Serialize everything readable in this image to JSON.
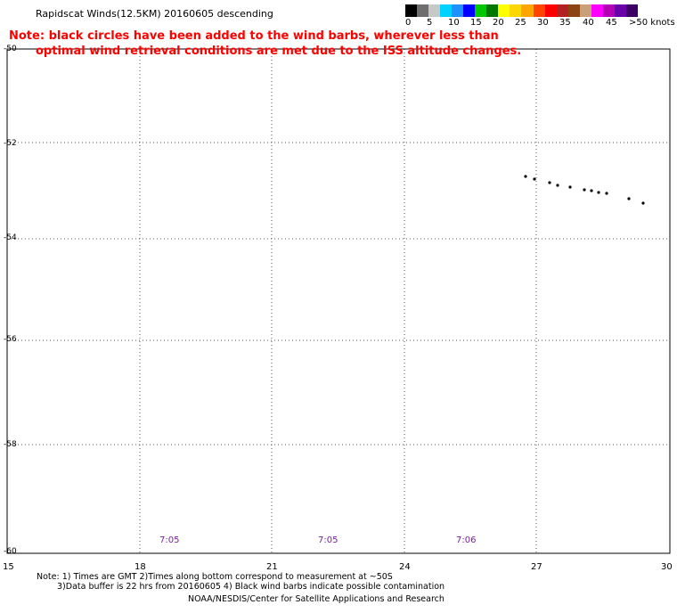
{
  "title": "Rapidscat Winds(12.5KM) 20160605 descending",
  "note_line1": "Note: black circles have been added to the wind barbs, wherever less than",
  "note_line2": "optimal wind retrieval conditions are met due to the ISS altitude changes.",
  "legend": {
    "labels": [
      "0",
      "5",
      "10",
      "15",
      "20",
      "25",
      "30",
      "35",
      "40",
      "45",
      ">50 knots"
    ],
    "colors": [
      "#000000",
      "#6e6e6e",
      "#c8c8c8",
      "#00d2ff",
      "#1e90ff",
      "#0000ff",
      "#00c800",
      "#007800",
      "#ffff00",
      "#ffd700",
      "#ffa500",
      "#ff4500",
      "#ff0000",
      "#b22222",
      "#8b4513",
      "#c8a07a",
      "#ff00ff",
      "#b400b4",
      "#6a00a8",
      "#3c0064"
    ]
  },
  "map": {
    "lon_range": [
      15,
      30
    ],
    "lat_range": [
      -60,
      -50
    ],
    "lat_ticks": [
      "-50",
      "-52",
      "-54",
      "-56",
      "-58",
      "-60"
    ],
    "lon_ticks": [
      "15",
      "18",
      "21",
      "24",
      "27",
      "30"
    ],
    "swath_times": [
      "7:05",
      "7:05",
      "7:06"
    ]
  },
  "footer": {
    "line1": "Note: 1) Times are GMT 2)Times along bottom correspond to measurement at ~50S",
    "line2": "3)Data buffer is 22 hrs from 20160605 4) Black wind barbs indicate possible contamination",
    "line3": "NOAA/NESDIS/Center for Satellite Applications and Research"
  }
}
